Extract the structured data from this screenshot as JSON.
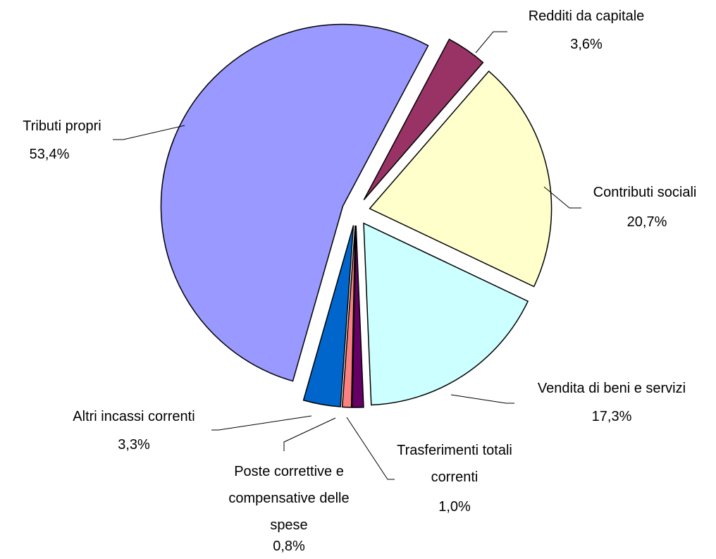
{
  "chart_data": {
    "type": "pie",
    "categories": [
      "Redditi da capitale",
      "Contributi sociali",
      "Vendita di beni e servizi",
      "Trasferimenti totali correnti",
      "Poste correttive e compensative delle spese",
      "Altri incassi correnti",
      "Tributi propri"
    ],
    "values": [
      3.6,
      20.7,
      17.3,
      1.0,
      0.8,
      3.3,
      53.4
    ],
    "value_labels": [
      "3,6%",
      "20,7%",
      "17,3%",
      "1,0%",
      "0,8%",
      "3,3%",
      "53,4%"
    ],
    "colors": [
      "#993366",
      "#ffffcc",
      "#ccffff",
      "#660066",
      "#ff8080",
      "#0066cc",
      "#9999ff"
    ]
  }
}
